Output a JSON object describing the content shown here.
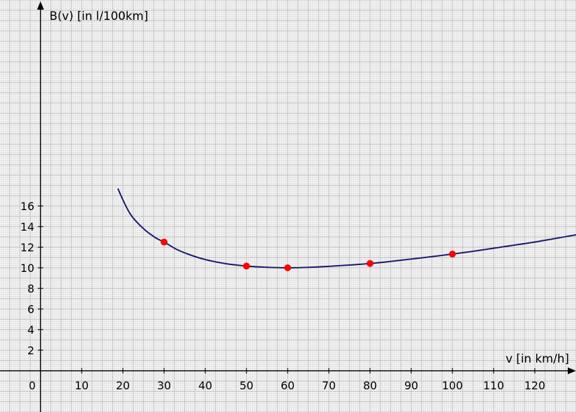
{
  "chart_data": {
    "type": "line",
    "xlabel": "v [in km/h]",
    "ylabel": "B(v) [in l/100km]",
    "xlim": [
      -10,
      130
    ],
    "ylim": [
      -2,
      18
    ],
    "x_ticks": [
      0,
      10,
      20,
      30,
      40,
      50,
      60,
      70,
      80,
      90,
      100,
      110,
      120
    ],
    "y_ticks": [
      2,
      4,
      6,
      8,
      10,
      12,
      14,
      16
    ],
    "origin_label": "0",
    "grid": true,
    "curve_color": "#1a1a6e",
    "point_color": "#ff0000",
    "curve": {
      "x": [
        18.8,
        20,
        22,
        25,
        28,
        30,
        33,
        36,
        40,
        45,
        50,
        55,
        60,
        65,
        70,
        75,
        80,
        85,
        90,
        95,
        100,
        105,
        110,
        115,
        120,
        125,
        130
      ],
      "y": [
        17.7,
        16.6,
        15.1,
        13.8,
        12.9,
        12.5,
        11.8,
        11.3,
        10.8,
        10.4,
        10.17,
        10.05,
        10.0,
        10.04,
        10.14,
        10.27,
        10.42,
        10.62,
        10.85,
        11.08,
        11.33,
        11.6,
        11.9,
        12.2,
        12.5,
        12.85,
        13.2
      ]
    },
    "points": [
      {
        "x": 30,
        "y": 12.5
      },
      {
        "x": 50,
        "y": 10.17
      },
      {
        "x": 60,
        "y": 10.0
      },
      {
        "x": 80,
        "y": 10.42
      },
      {
        "x": 100,
        "y": 11.33
      }
    ]
  }
}
